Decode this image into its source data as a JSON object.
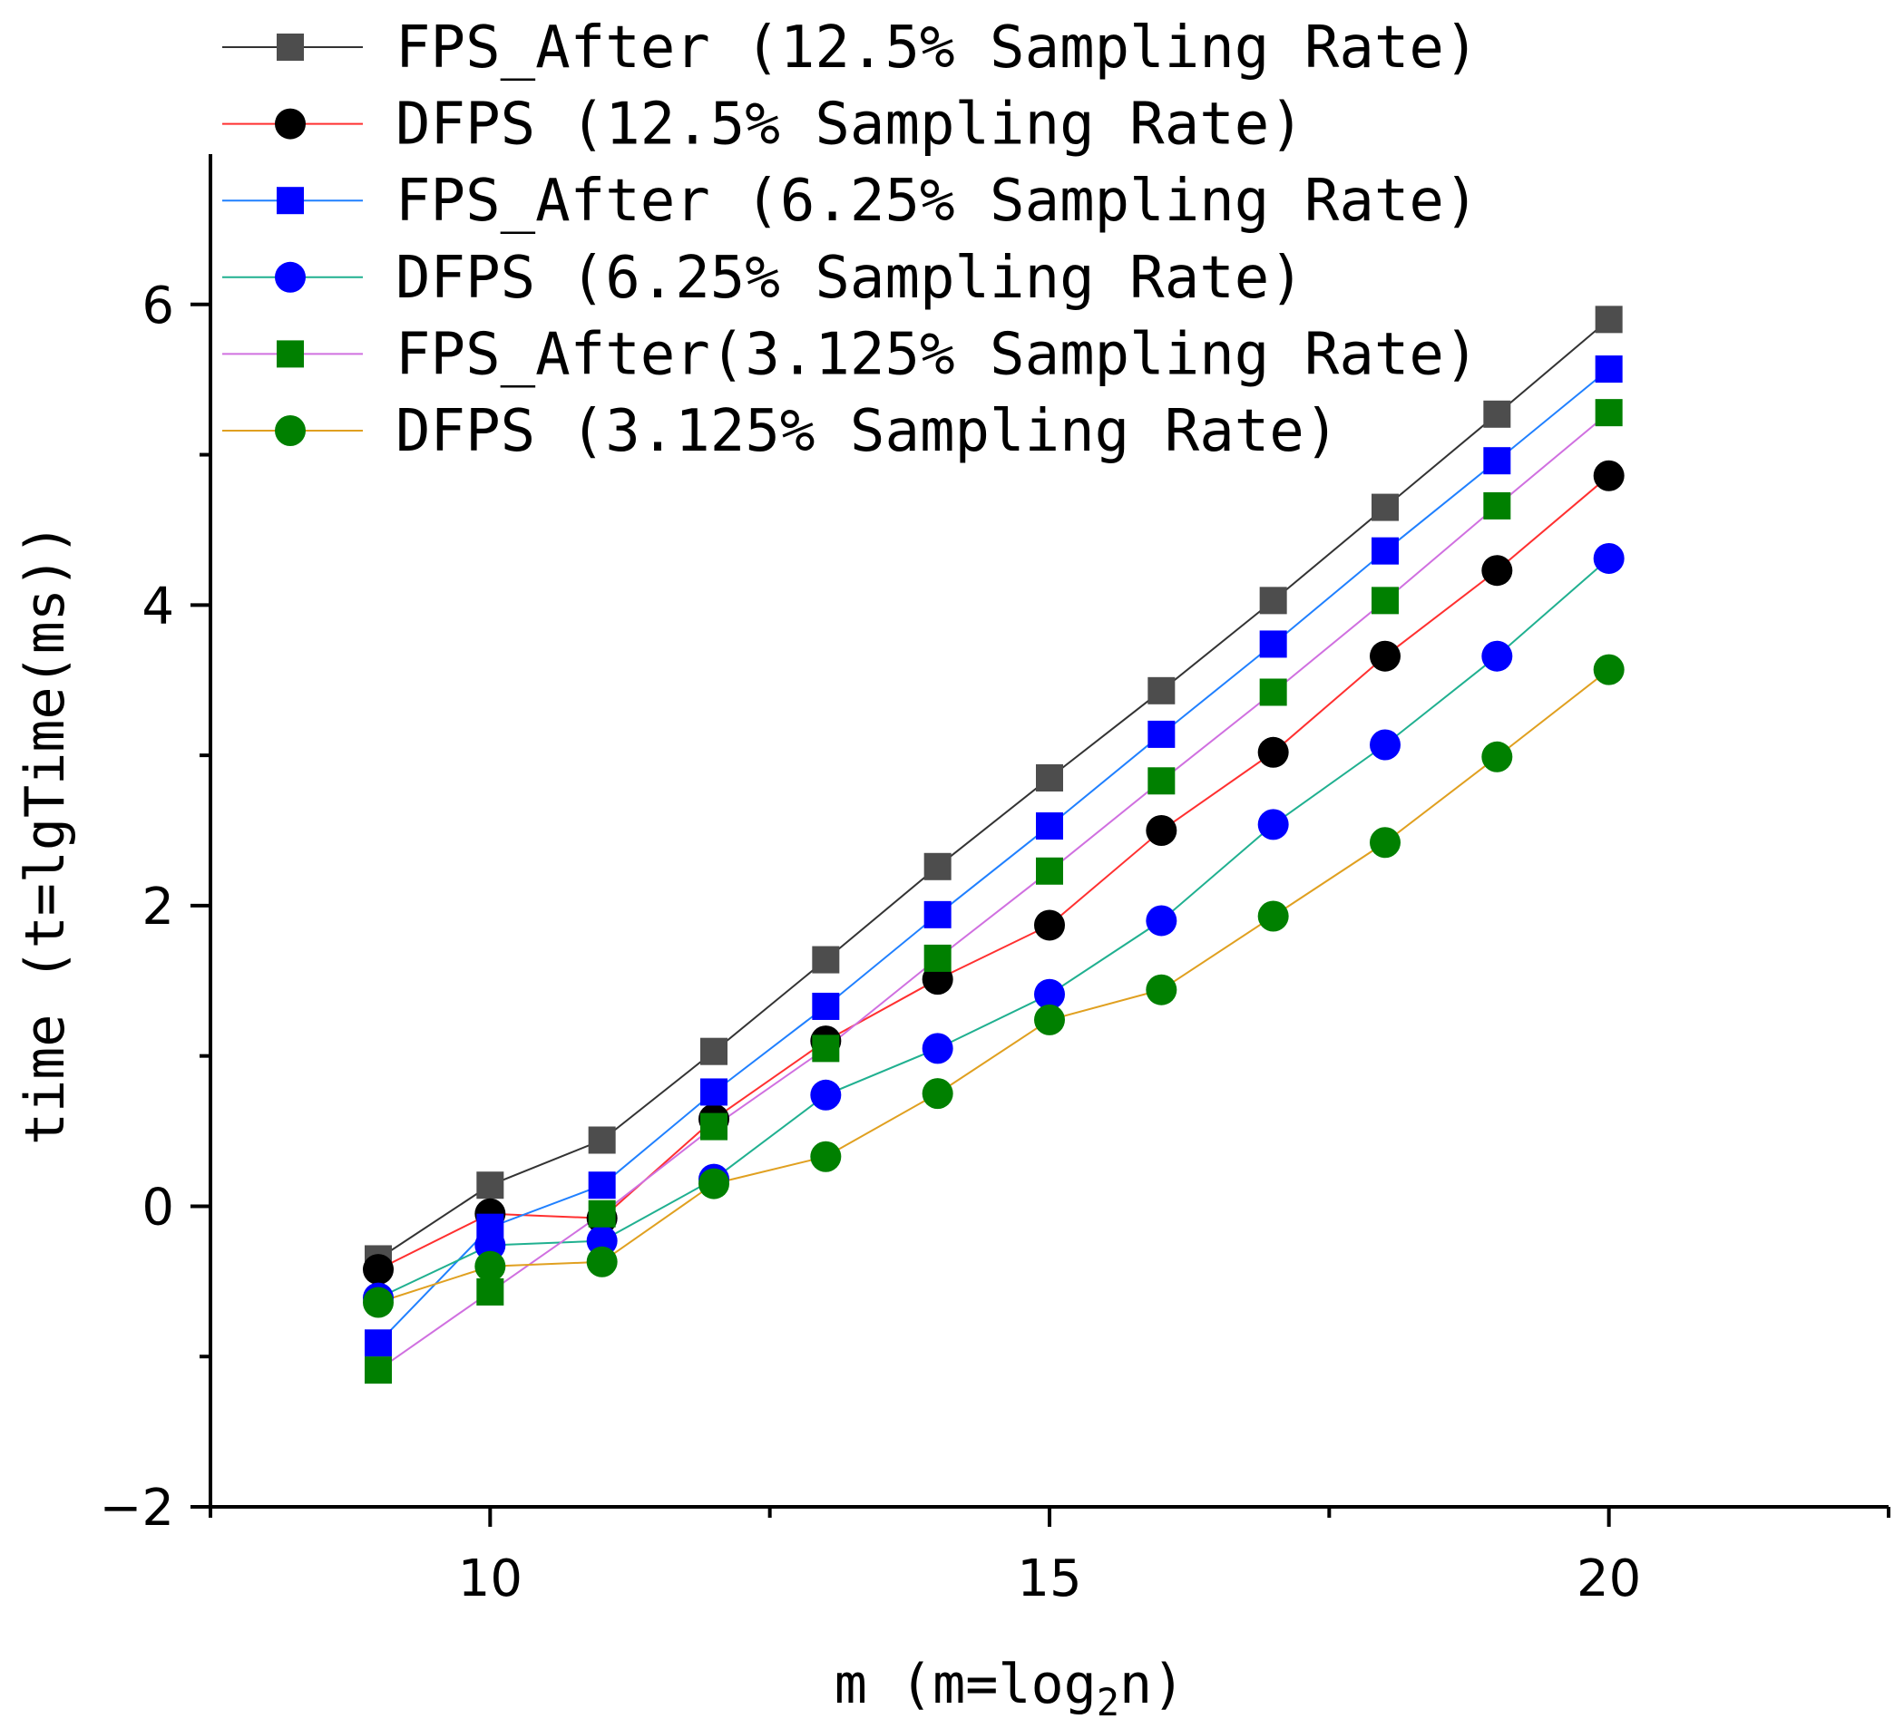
{
  "chart_data": {
    "type": "line",
    "title": "",
    "xlabel": "m (m=log",
    "xlabel_sub": "2",
    "xlabel_tail": "n)",
    "ylabel": "time (t=lgTime(ms))",
    "xlim": [
      7.5,
      22.5
    ],
    "ylim": [
      -2,
      7
    ],
    "x_ticks": [
      10,
      15,
      20
    ],
    "y_ticks": [
      -2,
      0,
      2,
      4,
      6
    ],
    "x_tick_labels": [
      "10",
      "15",
      "20"
    ],
    "y_tick_labels": [
      "−2",
      "0",
      "2",
      "4",
      "6"
    ],
    "grid": false,
    "legend_position": "top-left",
    "x": [
      9,
      10,
      11,
      12,
      13,
      14,
      15,
      16,
      17,
      18,
      19,
      20
    ],
    "series": [
      {
        "name": "FPS_After (12.5% Sampling Rate)",
        "marker": "square",
        "marker_color": "#4d4d4d",
        "line_color": "#333333",
        "values": [
          -0.35,
          0.14,
          0.44,
          1.03,
          1.64,
          2.26,
          2.85,
          3.43,
          4.03,
          4.65,
          5.27,
          5.9
        ]
      },
      {
        "name": "DFPS (12.5% Sampling Rate)",
        "marker": "circle",
        "marker_color": "#000000",
        "line_color": "#ff3030",
        "values": [
          -0.42,
          -0.05,
          -0.08,
          0.58,
          1.1,
          1.51,
          1.87,
          2.5,
          3.02,
          3.66,
          4.23,
          4.86
        ]
      },
      {
        "name": "FPS_After (6.25% Sampling Rate)",
        "marker": "square",
        "marker_color": "#0000ff",
        "line_color": "#2080ff",
        "values": [
          -0.91,
          -0.14,
          0.14,
          0.76,
          1.33,
          1.94,
          2.53,
          3.14,
          3.74,
          4.36,
          4.96,
          5.57
        ]
      },
      {
        "name": "DFPS (6.25% Sampling Rate)",
        "marker": "circle",
        "marker_color": "#0000ff",
        "line_color": "#20b090",
        "values": [
          -0.61,
          -0.26,
          -0.23,
          0.18,
          0.74,
          1.05,
          1.41,
          1.9,
          2.54,
          3.07,
          3.66,
          4.31
        ]
      },
      {
        "name": "FPS_After(3.125% Sampling Rate)",
        "marker": "square",
        "marker_color": "#008000",
        "line_color": "#d070e0",
        "values": [
          -1.09,
          -0.57,
          -0.05,
          0.53,
          1.05,
          1.65,
          2.23,
          2.83,
          3.42,
          4.03,
          4.66,
          5.28
        ]
      },
      {
        "name": "DFPS (3.125% Sampling Rate)",
        "marker": "circle",
        "marker_color": "#008000",
        "line_color": "#e0a020",
        "values": [
          -0.64,
          -0.4,
          -0.37,
          0.15,
          0.33,
          0.75,
          1.24,
          1.44,
          1.93,
          2.42,
          2.99,
          3.57
        ]
      }
    ]
  }
}
